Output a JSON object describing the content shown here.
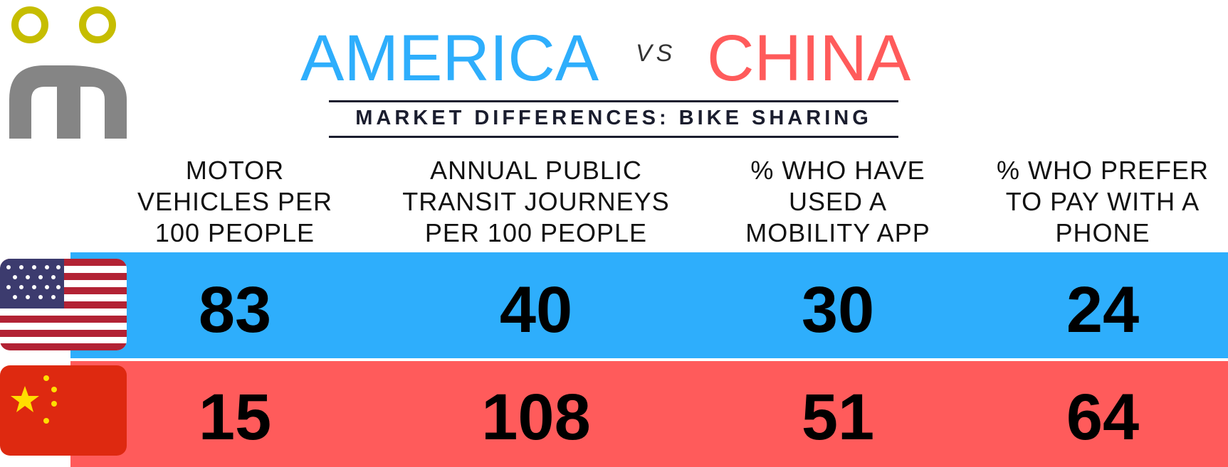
{
  "header": {
    "left": "AMERICA",
    "vs": "VS",
    "right": "CHINA",
    "subtitle": "MARKET DIFFERENCES: BIKE SHARING"
  },
  "table": {
    "columns": [
      "MOTOR VEHICLES PER 100 PEOPLE",
      "ANNUAL PUBLIC TRANSIT JOURNEYS PER 100 PEOPLE",
      "% WHO HAVE USED A MOBILITY APP",
      "% WHO PREFER TO PAY WITH A PHONE"
    ],
    "rows": [
      [
        "83",
        "40",
        "30",
        "24"
      ],
      [
        "15",
        "108",
        "51",
        "64"
      ]
    ]
  }
}
